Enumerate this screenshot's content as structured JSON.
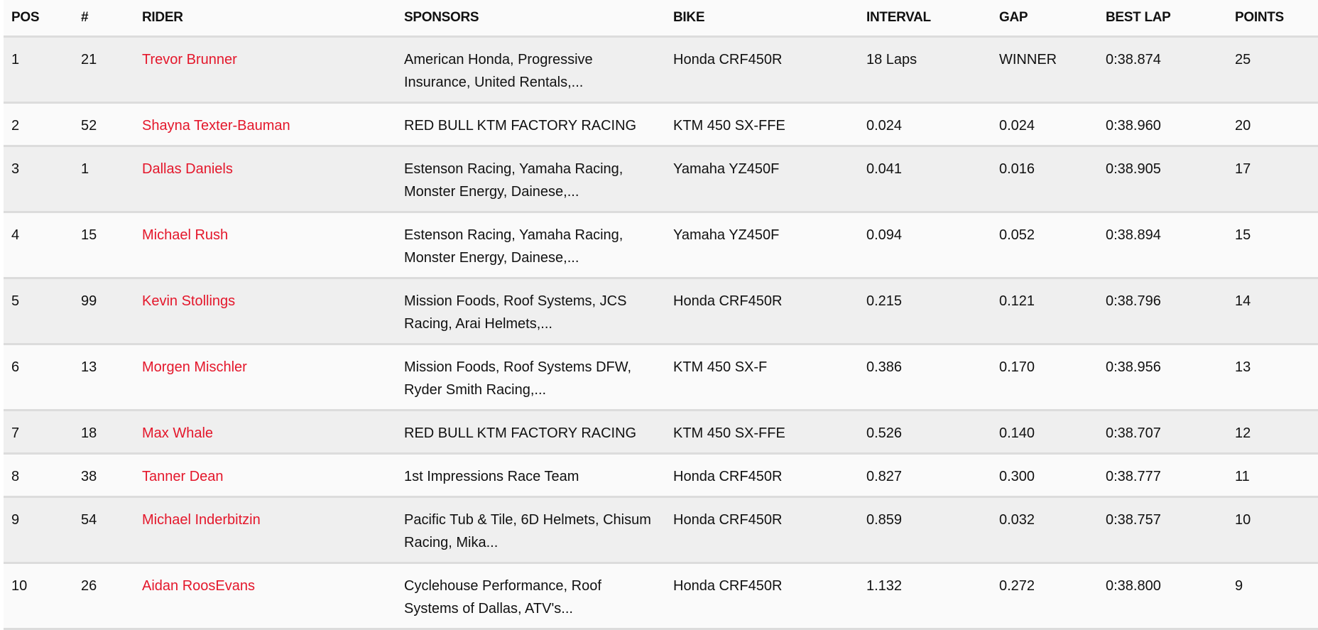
{
  "accent_color": "#e4172b",
  "columns": [
    "POS",
    "#",
    "RIDER",
    "SPONSORS",
    "BIKE",
    "INTERVAL",
    "GAP",
    "BEST LAP",
    "POINTS"
  ],
  "rows": [
    {
      "pos": "1",
      "num": "21",
      "rider": "Trevor Brunner",
      "sponsors": "American Honda, Progressive Insurance, United Rentals,...",
      "bike": "Honda CRF450R",
      "interval": "18 Laps",
      "gap": "WINNER",
      "best_lap": "0:38.874",
      "points": "25"
    },
    {
      "pos": "2",
      "num": "52",
      "rider": "Shayna Texter-Bauman",
      "sponsors": "RED BULL KTM FACTORY RACING",
      "bike": "KTM 450 SX-FFE",
      "interval": "0.024",
      "gap": "0.024",
      "best_lap": "0:38.960",
      "points": "20"
    },
    {
      "pos": "3",
      "num": "1",
      "rider": "Dallas Daniels",
      "sponsors": "Estenson Racing, Yamaha Racing, Monster Energy, Dainese,...",
      "bike": "Yamaha YZ450F",
      "interval": "0.041",
      "gap": "0.016",
      "best_lap": "0:38.905",
      "points": "17"
    },
    {
      "pos": "4",
      "num": "15",
      "rider": "Michael Rush",
      "sponsors": "Estenson Racing, Yamaha Racing, Monster Energy, Dainese,...",
      "bike": "Yamaha YZ450F",
      "interval": "0.094",
      "gap": "0.052",
      "best_lap": "0:38.894",
      "points": "15"
    },
    {
      "pos": "5",
      "num": "99",
      "rider": "Kevin Stollings",
      "sponsors": "Mission Foods, Roof Systems, JCS Racing, Arai Helmets,...",
      "bike": "Honda CRF450R",
      "interval": "0.215",
      "gap": "0.121",
      "best_lap": "0:38.796",
      "points": "14"
    },
    {
      "pos": "6",
      "num": "13",
      "rider": "Morgen Mischler",
      "sponsors": "Mission Foods, Roof Systems DFW, Ryder Smith Racing,...",
      "bike": "KTM 450 SX-F",
      "interval": "0.386",
      "gap": "0.170",
      "best_lap": "0:38.956",
      "points": "13"
    },
    {
      "pos": "7",
      "num": "18",
      "rider": "Max Whale",
      "sponsors": "RED BULL KTM FACTORY RACING",
      "bike": "KTM 450 SX-FFE",
      "interval": "0.526",
      "gap": "0.140",
      "best_lap": "0:38.707",
      "points": "12"
    },
    {
      "pos": "8",
      "num": "38",
      "rider": "Tanner Dean",
      "sponsors": "1st Impressions Race Team",
      "bike": "Honda CRF450R",
      "interval": "0.827",
      "gap": "0.300",
      "best_lap": "0:38.777",
      "points": "11"
    },
    {
      "pos": "9",
      "num": "54",
      "rider": "Michael Inderbitzin",
      "sponsors": "Pacific Tub & Tile, 6D Helmets, Chisum Racing, Mika...",
      "bike": "Honda CRF450R",
      "interval": "0.859",
      "gap": "0.032",
      "best_lap": "0:38.757",
      "points": "10"
    },
    {
      "pos": "10",
      "num": "26",
      "rider": "Aidan RoosEvans",
      "sponsors": "Cyclehouse Performance, Roof Systems of Dallas, ATV's...",
      "bike": "Honda CRF450R",
      "interval": "1.132",
      "gap": "0.272",
      "best_lap": "0:38.800",
      "points": "9"
    }
  ]
}
